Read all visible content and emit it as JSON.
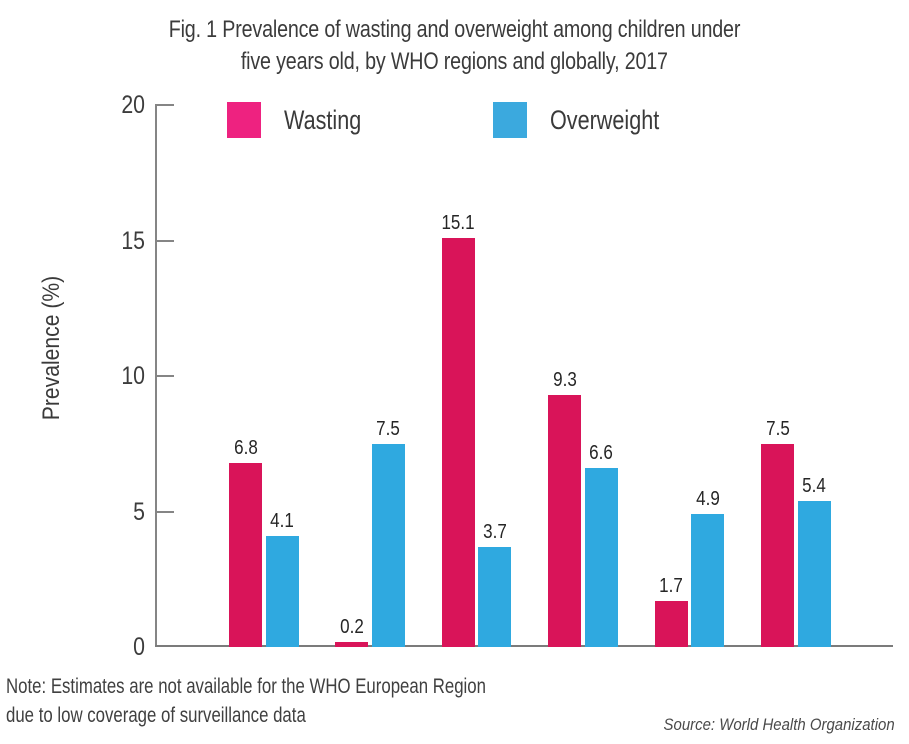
{
  "figure": {
    "title_line1": "Fig. 1 Prevalence of wasting and overweight among children under",
    "title_line2": "five years old, by WHO regions and globally, 2017",
    "note_line1": "Note: Estimates are not available for the WHO European Region",
    "note_line2": "due to low coverage of surveillance data",
    "source": "Source: World Health Organization"
  },
  "colors": {
    "wasting_bar": "#D91459",
    "wasting_legend": "#EE2280",
    "overweight_bar": "#2FA9E0",
    "overweight_legend": "#3BA9DE",
    "axis": "#858585",
    "text": "#3A3A3A"
  },
  "chart_data": {
    "type": "bar",
    "title": "Fig. 1 Prevalence of wasting and overweight among children under five years old, by WHO regions and globally, 2017",
    "categories": [
      "",
      "",
      "",
      "",
      "",
      ""
    ],
    "x_axis_labels_visible": false,
    "series": [
      {
        "name": "Wasting",
        "color": "#D91459",
        "values": [
          6.8,
          0.2,
          15.1,
          9.3,
          1.7,
          7.5
        ]
      },
      {
        "name": "Overweight",
        "color": "#2FA9E0",
        "values": [
          4.1,
          7.5,
          3.7,
          6.6,
          4.9,
          5.4
        ]
      }
    ],
    "ylabel": "Prevalence (%)",
    "ylim": [
      0,
      20
    ],
    "yticks": [
      0,
      5,
      10,
      15,
      20
    ],
    "grid": false,
    "legend_position": "top",
    "value_labels": true,
    "note": "Note: Estimates are not available for the WHO European Region due to low coverage of surveillance data",
    "source": "Source: World Health Organization"
  }
}
